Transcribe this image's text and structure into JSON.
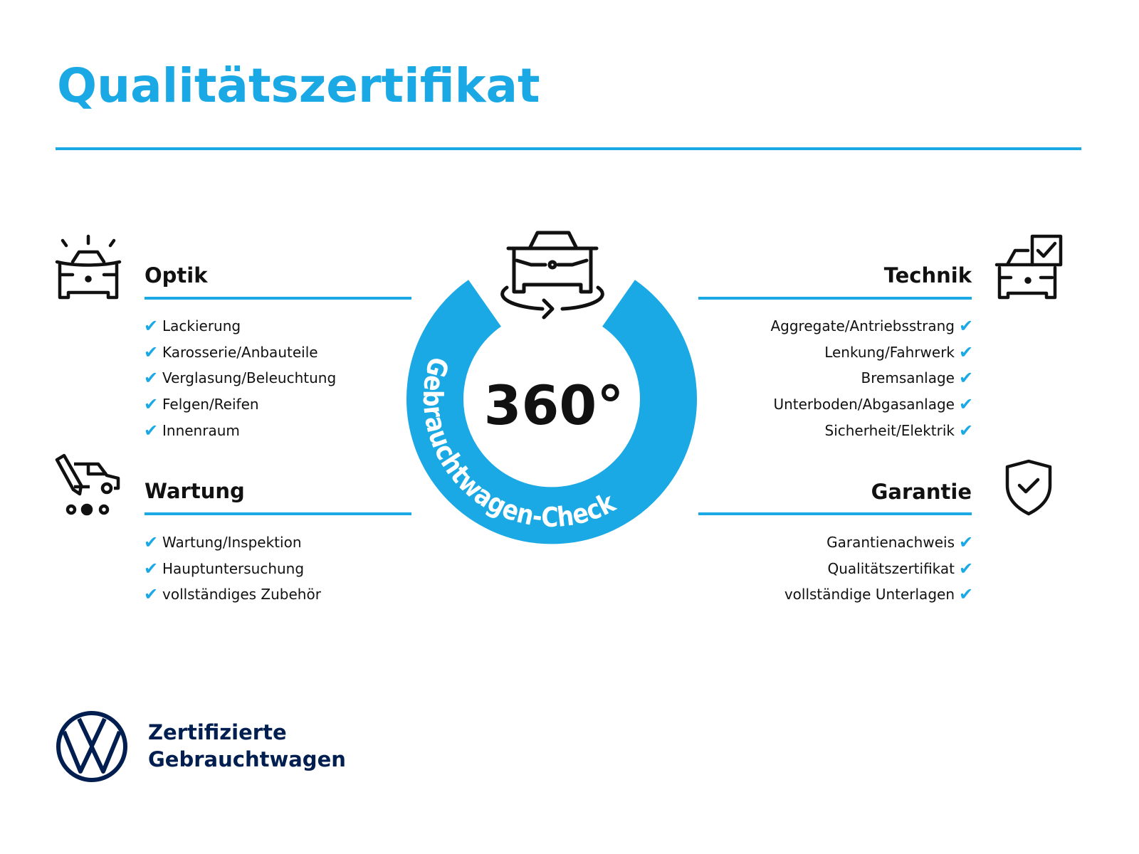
{
  "title": "Qualitätszertifikat",
  "colors": {
    "accent": "#1aa9e4",
    "brand_navy": "#001e50",
    "text": "#111111"
  },
  "center": {
    "degrees": "360°",
    "ring_text": "Gebrauchtwagen-Check",
    "icon": "car-rotate-icon"
  },
  "sections": {
    "optik": {
      "title": "Optik",
      "icon": "car-lights-icon",
      "items": [
        "Lackierung",
        "Karosserie/Anbauteile",
        "Verglasung/Beleuchtung",
        "Felgen/Reifen",
        "Innenraum"
      ]
    },
    "wartung": {
      "title": "Wartung",
      "icon": "service-truck-icon",
      "items": [
        "Wartung/Inspektion",
        "Hauptuntersuchung",
        "vollständiges Zubehör"
      ]
    },
    "technik": {
      "title": "Technik",
      "icon": "car-checkbox-icon",
      "items": [
        "Aggregate/Antriebsstrang",
        "Lenkung/Fahrwerk",
        "Bremsanlage",
        "Unterboden/Abgasanlage",
        "Sicherheit/Elektrik"
      ]
    },
    "garantie": {
      "title": "Garantie",
      "icon": "shield-check-icon",
      "items": [
        "Garantienachweis",
        "Qualitätszertifikat",
        "vollständige Unterlagen"
      ]
    }
  },
  "check_mark": "✔",
  "footer": {
    "line1": "Zertifizierte",
    "line2": "Gebrauchtwagen",
    "logo": "vw-logo"
  }
}
